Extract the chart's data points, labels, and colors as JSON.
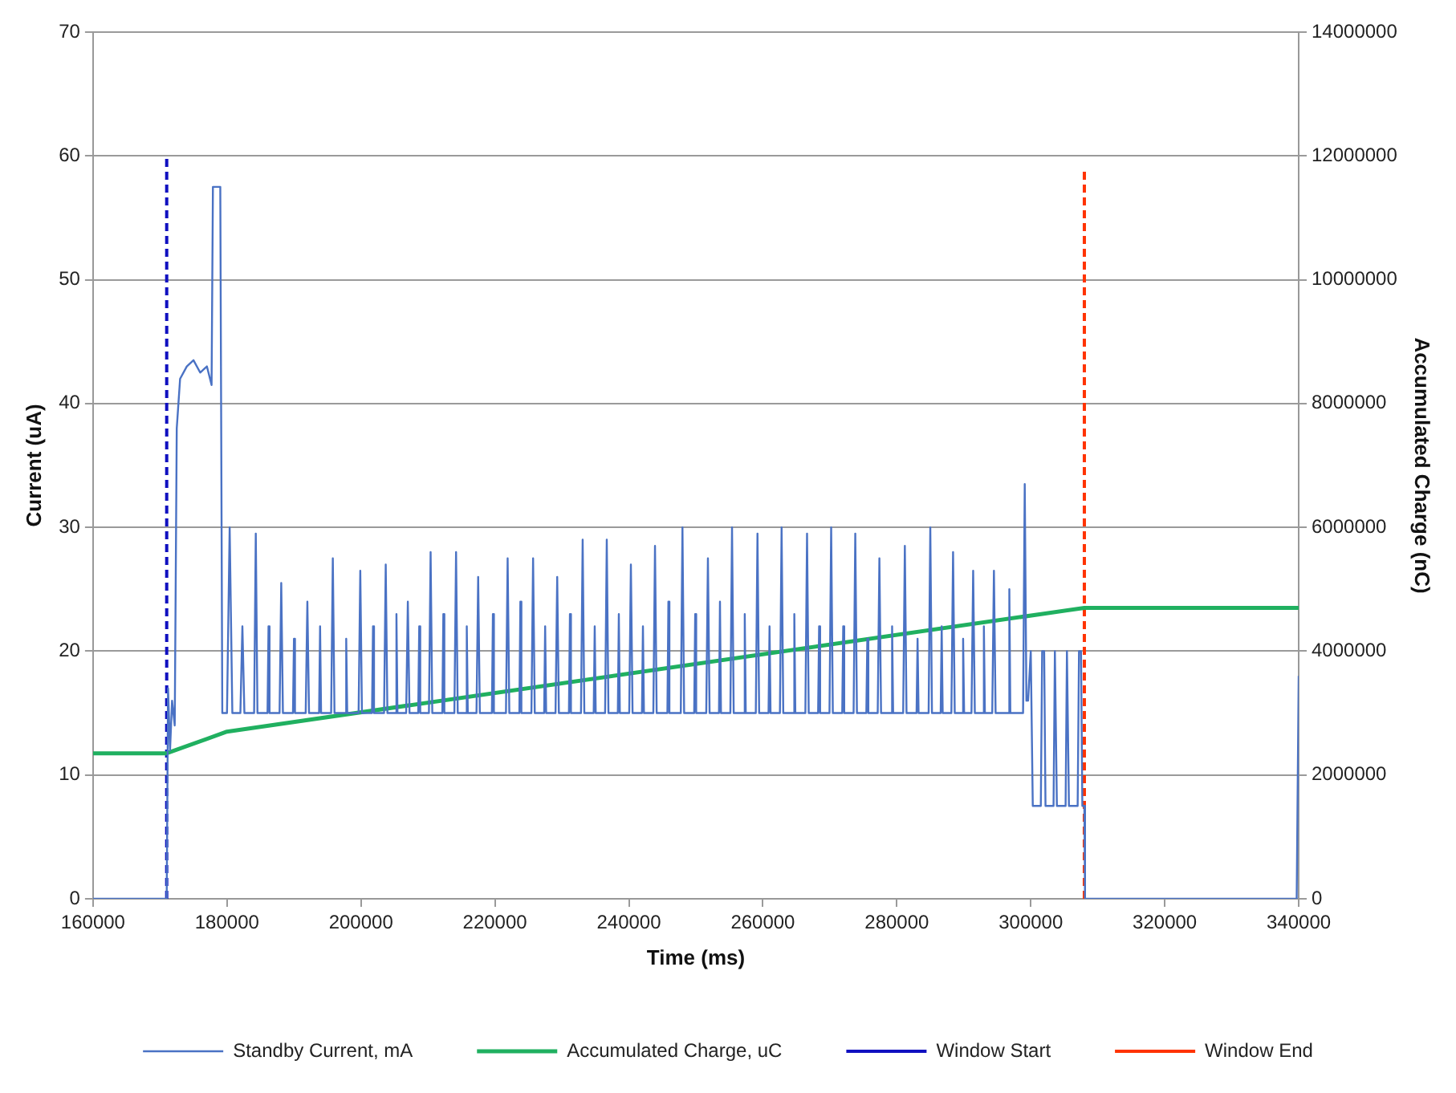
{
  "chart_data": {
    "type": "line",
    "xlabel": "Time (ms)",
    "ylabel": "Current (uA)",
    "y2label": "Accumulated Charge (nC)",
    "xlim": [
      160000,
      340000
    ],
    "xticks": [
      160000,
      180000,
      200000,
      220000,
      240000,
      260000,
      280000,
      300000,
      320000,
      340000
    ],
    "ylim": [
      0,
      70
    ],
    "yticks": [
      0,
      10,
      20,
      30,
      40,
      50,
      60,
      70
    ],
    "y2lim": [
      0,
      14000000
    ],
    "y2ticks": [
      0,
      2000000,
      4000000,
      6000000,
      8000000,
      10000000,
      12000000,
      14000000
    ],
    "grid": "y",
    "legend": "bottom",
    "marker": "none",
    "series": [
      {
        "name": "Standby Current, mA",
        "color": "#4a72c4",
        "line_style": "solid",
        "x": [
          160000,
          171000,
          171200,
          171500,
          171800,
          172200,
          172500,
          173000,
          174000,
          175000,
          176000,
          177000,
          177700,
          177900,
          179000,
          179300,
          180000,
          180400,
          180800,
          182000,
          182300,
          182600,
          184050,
          184300,
          184550,
          186050,
          186200,
          186350,
          187850,
          188100,
          188350,
          189850,
          190000,
          190150,
          191750,
          192000,
          192250,
          193750,
          193900,
          194050,
          195550,
          195800,
          196050,
          197650,
          197800,
          197950,
          199650,
          199900,
          200150,
          201650,
          201800,
          201950,
          203450,
          203700,
          203950,
          205150,
          205300,
          205450,
          206750,
          207000,
          207250,
          208550,
          208700,
          208850,
          210150,
          210400,
          210650,
          212150,
          212300,
          212450,
          213950,
          214200,
          214450,
          215650,
          215800,
          215950,
          217250,
          217500,
          217750,
          219550,
          219700,
          219850,
          221650,
          221900,
          222150,
          223650,
          223800,
          223950,
          225450,
          225700,
          225950,
          227350,
          227500,
          227650,
          229050,
          229300,
          229550,
          231050,
          231200,
          231350,
          232850,
          233100,
          233350,
          234750,
          234900,
          235050,
          236450,
          236700,
          236950,
          238350,
          238500,
          238650,
          240050,
          240300,
          240550,
          241950,
          242100,
          242250,
          243650,
          243900,
          244150,
          245750,
          245900,
          246050,
          247750,
          248000,
          248250,
          249750,
          249900,
          250050,
          251550,
          251800,
          252050,
          253450,
          253600,
          253750,
          255150,
          255400,
          255650,
          257150,
          257300,
          257450,
          258950,
          259200,
          259450,
          260850,
          261000,
          261150,
          262550,
          262800,
          263050,
          264550,
          264700,
          264850,
          266350,
          266600,
          266850,
          268250,
          268400,
          268550,
          269950,
          270200,
          270450,
          271850,
          272000,
          272150,
          273550,
          273800,
          274050,
          275450,
          275600,
          275750,
          277150,
          277400,
          277650,
          279150,
          279300,
          279450,
          280950,
          281200,
          281450,
          282950,
          283100,
          283250,
          284750,
          285000,
          285250,
          286550,
          286700,
          286850,
          288150,
          288400,
          288650,
          289750,
          289900,
          290050,
          291150,
          291400,
          291650,
          292850,
          293000,
          293150,
          294250,
          294500,
          294750,
          296650,
          296800,
          296950,
          298850,
          299100,
          299350,
          299600,
          300000,
          300300,
          301500,
          301700,
          302000,
          302200,
          303400,
          303600,
          303900,
          305200,
          305400,
          305700,
          307000,
          307200,
          307500,
          307700,
          308000,
          308100,
          339700,
          340000
        ],
        "values": [
          0,
          0,
          17,
          12,
          16,
          14,
          38,
          42,
          43,
          43.5,
          42.5,
          43,
          41.5,
          57.5,
          57.5,
          15,
          15,
          30,
          15,
          15,
          22,
          15,
          15,
          29.5,
          15,
          15,
          22,
          15,
          15,
          25.5,
          15,
          15,
          21,
          15,
          15,
          24,
          15,
          15,
          22,
          15,
          15,
          27.5,
          15,
          15,
          21,
          15,
          15,
          26.5,
          15,
          15,
          22,
          15,
          15,
          27,
          15,
          15,
          23,
          15,
          15,
          24,
          15,
          15,
          22,
          15,
          15,
          28,
          15,
          15,
          23,
          15,
          15,
          28,
          15,
          15,
          22,
          15,
          15,
          26,
          15,
          15,
          23,
          15,
          15,
          27.5,
          15,
          15,
          24,
          15,
          15,
          27.5,
          15,
          15,
          22,
          15,
          15,
          26,
          15,
          15,
          23,
          15,
          15,
          29,
          15,
          15,
          22,
          15,
          15,
          29,
          15,
          15,
          23,
          15,
          15,
          27,
          15,
          15,
          22,
          15,
          15,
          28.5,
          15,
          15,
          24,
          15,
          15,
          30,
          15,
          15,
          23,
          15,
          15,
          27.5,
          15,
          15,
          24,
          15,
          15,
          30,
          15,
          15,
          23,
          15,
          15,
          29.5,
          15,
          15,
          22,
          15,
          15,
          30,
          15,
          15,
          23,
          15,
          15,
          29.5,
          15,
          15,
          22,
          15,
          15,
          30,
          15,
          15,
          22,
          15,
          15,
          29.5,
          15,
          15,
          21,
          15,
          15,
          27.5,
          15,
          15,
          22,
          15,
          15,
          28.5,
          15,
          15,
          21,
          15,
          15,
          30,
          15,
          15,
          22,
          15,
          15,
          28,
          15,
          15,
          21,
          15,
          15,
          26.5,
          15,
          15,
          22,
          15,
          15,
          26.5,
          15,
          15,
          25,
          15,
          15,
          33.5,
          16,
          16,
          20,
          7.5,
          7.5,
          20,
          20,
          7.5,
          7.5,
          20,
          7.5,
          7.5,
          20,
          7.5,
          7.5,
          20,
          20,
          7.5,
          7.5,
          0,
          0,
          18
        ]
      },
      {
        "name": "Accumulated Charge, uC",
        "color": "#20b060",
        "line_style": "solid",
        "axis": "y2",
        "x": [
          160000,
          171000,
          180000,
          308000,
          340000
        ],
        "values": [
          2350000,
          2350000,
          2700000,
          4700000,
          4700000
        ]
      },
      {
        "name": "Window Start",
        "color": "#1010c0",
        "line_style": "dashed",
        "x": [
          171000,
          171000
        ],
        "values": [
          0,
          60
        ]
      },
      {
        "name": "Window End",
        "color": "#ff3300",
        "line_style": "dashed",
        "x": [
          308000,
          308000
        ],
        "values": [
          0,
          59
        ]
      }
    ]
  }
}
